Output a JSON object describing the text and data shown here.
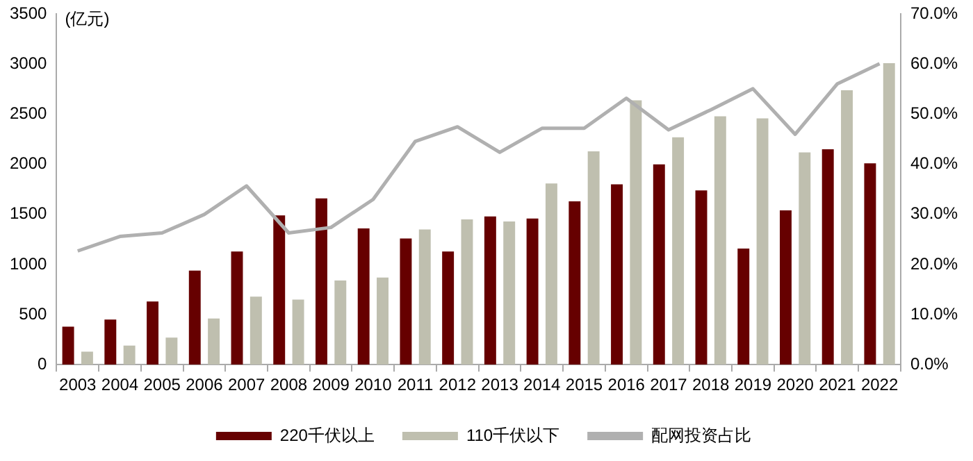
{
  "chart_data": {
    "type": "bar",
    "ylabel": "(亿元)",
    "categories": [
      "2003",
      "2004",
      "2005",
      "2006",
      "2007",
      "2008",
      "2009",
      "2010",
      "2011",
      "2012",
      "2013",
      "2014",
      "2015",
      "2016",
      "2017",
      "2018",
      "2019",
      "2020",
      "2021",
      "2022"
    ],
    "series": [
      {
        "name": "220千伏以上",
        "color": "#660000",
        "values": [
          380,
          450,
          630,
          940,
          1130,
          1490,
          1660,
          1360,
          1260,
          1130,
          1480,
          1460,
          1630,
          1800,
          2000,
          1740,
          1160,
          1540,
          2150,
          2010
        ]
      },
      {
        "name": "110千伏以下",
        "color": "#bfbfaf",
        "values": [
          130,
          190,
          270,
          460,
          680,
          650,
          840,
          870,
          1350,
          1450,
          1430,
          1810,
          2130,
          2640,
          2270,
          2480,
          2460,
          2120,
          2740,
          3010
        ]
      },
      {
        "name": "配网投资占比",
        "type": "line",
        "axis": "y2",
        "color": "#b0b0b0",
        "values": [
          22.7,
          25.6,
          26.3,
          30.0,
          35.7,
          26.3,
          27.4,
          33.0,
          44.6,
          47.5,
          42.4,
          47.2,
          47.2,
          53.2,
          46.9,
          50.9,
          55.1,
          46.0,
          56.1,
          60.1
        ]
      }
    ],
    "ylim": [
      0,
      3500
    ],
    "yticks": [
      0,
      500,
      1000,
      1500,
      2000,
      2500,
      3000,
      3500
    ],
    "y2lim": [
      0,
      70
    ],
    "y2ticks": [
      {
        "value": 0,
        "label": "0.0%"
      },
      {
        "value": 10,
        "label": "10.0%"
      },
      {
        "value": 20,
        "label": "20.0%"
      },
      {
        "value": 30,
        "label": "30.0%"
      },
      {
        "value": 40,
        "label": "40.0%"
      },
      {
        "value": 50,
        "label": "50.0%"
      },
      {
        "value": 60,
        "label": "60.0%"
      },
      {
        "value": 70,
        "label": "70.0%"
      }
    ],
    "grid": false,
    "legend": "bottom",
    "marker": "none"
  }
}
